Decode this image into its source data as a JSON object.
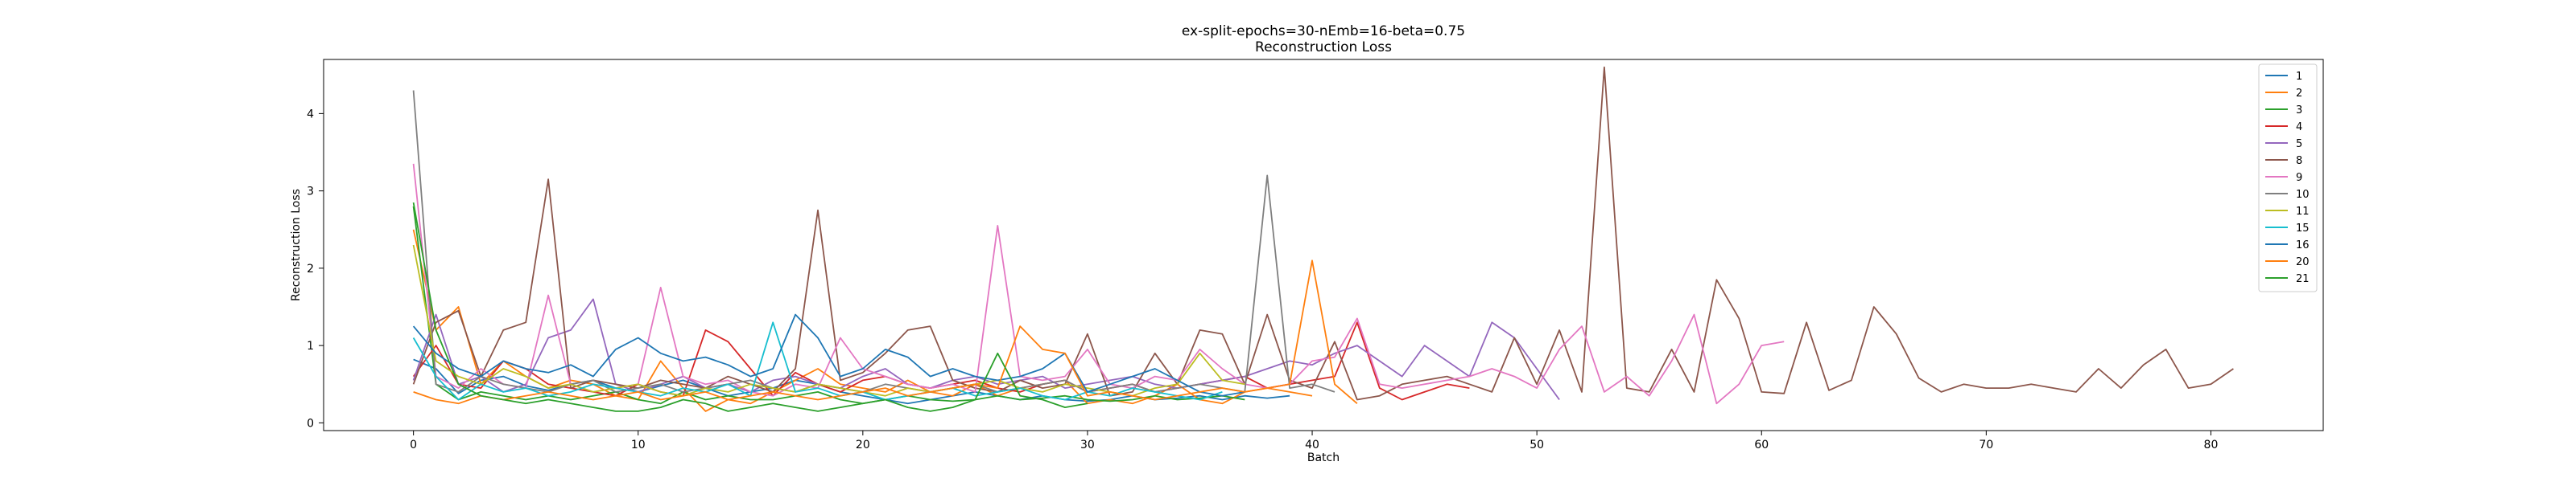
{
  "chart_data": {
    "type": "line",
    "title": "ex-split-epochs=30-nEmb=16-beta=0.75",
    "subtitle": "Reconstruction Loss",
    "xlabel": "Batch",
    "ylabel": "Reconstruction Loss",
    "xlim": [
      -4,
      85
    ],
    "ylim": [
      -0.1,
      4.7
    ],
    "xticks": [
      0,
      10,
      20,
      30,
      40,
      50,
      60,
      70,
      80
    ],
    "yticks": [
      0,
      1,
      2,
      3,
      4
    ],
    "grid": false,
    "legend_position": "top-right",
    "series": [
      {
        "name": "1",
        "color": "#1f77b4",
        "values": [
          0.82,
          0.7,
          0.38,
          0.55,
          0.6,
          0.48,
          0.42,
          0.5,
          0.55,
          0.45,
          0.4,
          0.48,
          0.55,
          0.45,
          0.35,
          0.4,
          0.45,
          0.55,
          0.5,
          0.4,
          0.35,
          0.3,
          0.25,
          0.3,
          0.35,
          0.4,
          0.35,
          0.3,
          0.35,
          0.3,
          0.28,
          0.3,
          0.35,
          0.3,
          0.32,
          0.35,
          0.3,
          0.35,
          0.32,
          0.35
        ]
      },
      {
        "name": "2",
        "color": "#ff7f0e",
        "values": [
          2.5,
          1.2,
          1.5,
          0.5,
          0.8,
          0.6,
          0.45,
          0.55,
          0.5,
          0.35,
          0.3,
          0.8,
          0.45,
          0.15,
          0.3,
          0.25,
          0.4,
          0.55,
          0.7,
          0.5,
          0.45,
          0.4,
          0.55,
          0.4,
          0.35,
          0.5,
          0.35,
          0.45,
          0.5,
          0.55,
          0.25,
          0.3,
          0.25,
          0.35,
          0.5,
          0.3,
          0.25,
          0.4,
          0.45,
          0.4,
          0.35
        ]
      },
      {
        "name": "3",
        "color": "#2ca02c",
        "values": [
          2.8,
          0.5,
          0.3,
          0.4,
          0.35,
          0.3,
          0.35,
          0.3,
          0.35,
          0.4,
          0.3,
          0.25,
          0.4,
          0.3,
          0.35,
          0.3,
          0.3,
          0.35,
          0.4,
          0.3,
          0.25,
          0.3,
          0.35,
          0.3,
          0.28,
          0.3,
          0.35,
          0.3,
          0.32,
          0.35,
          0.3,
          0.28,
          0.3,
          0.35,
          0.3,
          0.32,
          0.35,
          0.3
        ]
      },
      {
        "name": "4",
        "color": "#d62728",
        "values": [
          0.6,
          1.0,
          0.5,
          0.45,
          0.8,
          0.7,
          0.5,
          0.45,
          0.4,
          0.35,
          0.5,
          0.4,
          0.35,
          1.2,
          1.05,
          0.7,
          0.35,
          0.65,
          0.5,
          0.4,
          0.55,
          0.6,
          0.5,
          0.45,
          0.5,
          0.55,
          0.45,
          0.4,
          0.5,
          0.55,
          0.4,
          0.45,
          0.5,
          0.4,
          0.45,
          0.5,
          0.55,
          0.6,
          0.45,
          0.5,
          0.55,
          0.6,
          1.3,
          0.45,
          0.3,
          0.4,
          0.5,
          0.45
        ]
      },
      {
        "name": "5",
        "color": "#9467bd",
        "values": [
          0.55,
          1.4,
          0.5,
          0.6,
          0.4,
          0.5,
          1.1,
          1.2,
          1.6,
          0.5,
          0.4,
          0.5,
          0.6,
          0.45,
          0.5,
          0.4,
          0.55,
          0.6,
          0.5,
          0.45,
          0.6,
          0.7,
          0.5,
          0.45,
          0.55,
          0.6,
          0.5,
          0.55,
          0.6,
          0.45,
          0.5,
          0.55,
          0.6,
          0.5,
          0.45,
          0.5,
          0.55,
          0.6,
          0.7,
          0.8,
          0.75,
          0.9,
          1.0,
          0.8,
          0.6,
          1.0,
          0.8,
          0.6,
          1.3,
          1.1,
          0.7,
          0.3
        ]
      },
      {
        "name": "8",
        "color": "#8c564b",
        "values": [
          0.5,
          1.3,
          1.45,
          0.6,
          1.2,
          1.3,
          3.15,
          0.45,
          0.55,
          0.5,
          0.45,
          0.55,
          0.5,
          0.45,
          0.6,
          0.5,
          0.4,
          0.7,
          2.75,
          0.55,
          0.65,
          0.9,
          1.2,
          1.25,
          0.55,
          0.45,
          0.4,
          0.55,
          0.45,
          0.5,
          1.15,
          0.35,
          0.4,
          0.9,
          0.5,
          1.2,
          1.15,
          0.5,
          1.4,
          0.55,
          0.45,
          1.05,
          0.3,
          0.35,
          0.5,
          0.55,
          0.6,
          0.5,
          0.4,
          1.1,
          0.5,
          1.2,
          0.4,
          4.6,
          0.45,
          0.4,
          0.95,
          0.4,
          1.85,
          1.35,
          0.4,
          0.38,
          1.3,
          0.42,
          0.55,
          1.5,
          1.15,
          0.58,
          0.4,
          0.5,
          0.45,
          0.45,
          0.5,
          0.45,
          0.4,
          0.7,
          0.45,
          0.75,
          0.95,
          0.45,
          0.5,
          0.7
        ]
      },
      {
        "name": "9",
        "color": "#e377c2",
        "values": [
          3.35,
          0.6,
          0.45,
          0.7,
          0.5,
          0.45,
          1.65,
          0.5,
          0.4,
          0.45,
          0.5,
          1.75,
          0.6,
          0.5,
          0.55,
          0.4,
          0.35,
          0.5,
          0.45,
          1.1,
          0.7,
          0.6,
          0.5,
          0.45,
          0.5,
          0.4,
          2.55,
          0.6,
          0.55,
          0.6,
          0.95,
          0.5,
          0.45,
          0.6,
          0.55,
          0.95,
          0.7,
          0.5,
          0.45,
          0.5,
          0.8,
          0.85,
          1.35,
          0.5,
          0.45,
          0.5,
          0.55,
          0.6,
          0.7,
          0.6,
          0.45,
          0.95,
          1.25,
          0.4,
          0.6,
          0.35,
          0.8,
          1.4,
          0.25,
          0.5,
          1.0,
          1.05
        ]
      },
      {
        "name": "10",
        "color": "#7f7f7f",
        "values": [
          4.3,
          0.5,
          0.4,
          0.6,
          0.5,
          0.45,
          0.4,
          0.5,
          0.55,
          0.4,
          0.45,
          0.5,
          0.4,
          0.45,
          0.5,
          0.55,
          0.45,
          0.4,
          0.5,
          0.45,
          0.4,
          0.5,
          0.45,
          0.4,
          0.45,
          0.5,
          0.4,
          0.45,
          0.5,
          0.55,
          0.4,
          0.45,
          0.5,
          0.4,
          0.45,
          0.5,
          0.45,
          0.4,
          3.2,
          0.45,
          0.5,
          0.4
        ]
      },
      {
        "name": "11",
        "color": "#bcbd22",
        "values": [
          2.3,
          0.8,
          0.6,
          0.5,
          0.7,
          0.6,
          0.45,
          0.5,
          0.4,
          0.45,
          0.5,
          0.4,
          0.35,
          0.45,
          0.4,
          0.5,
          0.45,
          0.4,
          0.5,
          0.45,
          0.4,
          0.35,
          0.45,
          0.4,
          0.45,
          0.5,
          0.55,
          0.45,
          0.4,
          0.5,
          0.45,
          0.4,
          0.35,
          0.45,
          0.5,
          0.9,
          0.55,
          0.5
        ]
      },
      {
        "name": "15",
        "color": "#17becf",
        "values": [
          1.1,
          0.6,
          0.3,
          0.5,
          0.4,
          0.45,
          0.35,
          0.4,
          0.5,
          0.45,
          0.4,
          0.35,
          0.45,
          0.4,
          0.5,
          0.35,
          1.3,
          0.4,
          0.45,
          0.35,
          0.4,
          0.3,
          0.35,
          0.4,
          0.45,
          0.35,
          0.4,
          0.45,
          0.35,
          0.3,
          0.4,
          0.35,
          0.45,
          0.4,
          0.35,
          0.3,
          0.4
        ]
      },
      {
        "name": "16",
        "color": "#1f77b4",
        "values": [
          1.25,
          0.9,
          0.7,
          0.6,
          0.8,
          0.7,
          0.65,
          0.75,
          0.6,
          0.95,
          1.1,
          0.9,
          0.8,
          0.85,
          0.75,
          0.6,
          0.7,
          1.4,
          1.1,
          0.6,
          0.7,
          0.95,
          0.85,
          0.6,
          0.7,
          0.6,
          0.55,
          0.6,
          0.7,
          0.9,
          0.4,
          0.5,
          0.6,
          0.7,
          0.55,
          0.4,
          0.35,
          0.4
        ]
      },
      {
        "name": "20",
        "color": "#ff7f0e",
        "values": [
          0.4,
          0.3,
          0.25,
          0.35,
          0.3,
          0.35,
          0.4,
          0.35,
          0.3,
          0.35,
          0.4,
          0.3,
          0.35,
          0.4,
          0.3,
          0.35,
          0.4,
          0.35,
          0.3,
          0.35,
          0.4,
          0.45,
          0.35,
          0.4,
          0.45,
          0.5,
          0.45,
          1.25,
          0.95,
          0.9,
          0.35,
          0.4,
          0.35,
          0.3,
          0.35,
          0.4,
          0.45,
          0.4,
          0.45,
          0.5,
          2.1,
          0.5,
          0.25
        ]
      },
      {
        "name": "21",
        "color": "#2ca02c",
        "values": [
          2.85,
          1.2,
          0.5,
          0.35,
          0.3,
          0.25,
          0.3,
          0.25,
          0.2,
          0.15,
          0.15,
          0.2,
          0.3,
          0.25,
          0.15,
          0.2,
          0.25,
          0.2,
          0.15,
          0.2,
          0.25,
          0.3,
          0.2,
          0.15,
          0.2,
          0.3,
          0.9,
          0.35,
          0.3,
          0.2,
          0.25
        ]
      }
    ]
  }
}
